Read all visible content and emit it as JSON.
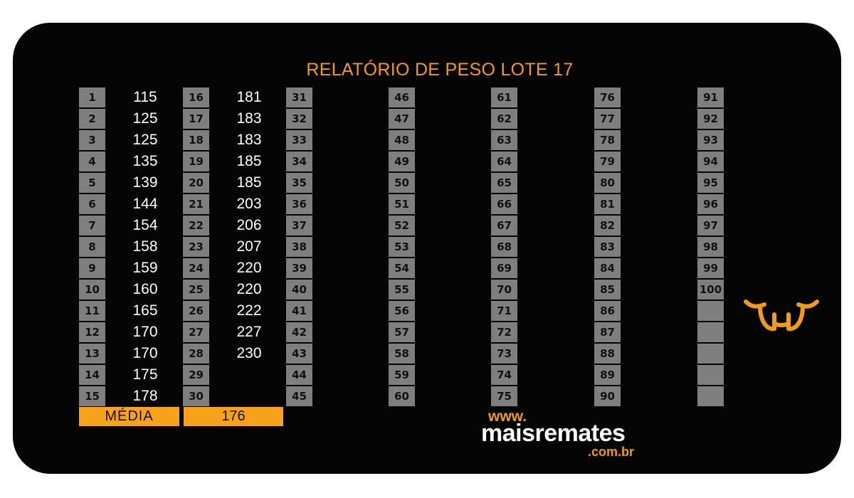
{
  "title": "RELATÓRIO DE PESO LOTE 17",
  "columns": [
    {
      "rows": [
        {
          "n": "1",
          "v": "115"
        },
        {
          "n": "2",
          "v": "125"
        },
        {
          "n": "3",
          "v": "125"
        },
        {
          "n": "4",
          "v": "135"
        },
        {
          "n": "5",
          "v": "139"
        },
        {
          "n": "6",
          "v": "144"
        },
        {
          "n": "7",
          "v": "154"
        },
        {
          "n": "8",
          "v": "158"
        },
        {
          "n": "9",
          "v": "159"
        },
        {
          "n": "10",
          "v": "160"
        },
        {
          "n": "11",
          "v": "165"
        },
        {
          "n": "12",
          "v": "170"
        },
        {
          "n": "13",
          "v": "170"
        },
        {
          "n": "14",
          "v": "175"
        },
        {
          "n": "15",
          "v": "178"
        }
      ]
    },
    {
      "rows": [
        {
          "n": "16",
          "v": "181"
        },
        {
          "n": "17",
          "v": "183"
        },
        {
          "n": "18",
          "v": "183"
        },
        {
          "n": "19",
          "v": "185"
        },
        {
          "n": "20",
          "v": "185"
        },
        {
          "n": "21",
          "v": "203"
        },
        {
          "n": "22",
          "v": "206"
        },
        {
          "n": "23",
          "v": "207"
        },
        {
          "n": "24",
          "v": "220"
        },
        {
          "n": "25",
          "v": "220"
        },
        {
          "n": "26",
          "v": "222"
        },
        {
          "n": "27",
          "v": "227"
        },
        {
          "n": "28",
          "v": "230"
        },
        {
          "n": "29",
          "v": ""
        },
        {
          "n": "30",
          "v": ""
        }
      ]
    },
    {
      "rows": [
        {
          "n": "31",
          "v": ""
        },
        {
          "n": "32",
          "v": ""
        },
        {
          "n": "33",
          "v": ""
        },
        {
          "n": "34",
          "v": ""
        },
        {
          "n": "35",
          "v": ""
        },
        {
          "n": "36",
          "v": ""
        },
        {
          "n": "37",
          "v": ""
        },
        {
          "n": "38",
          "v": ""
        },
        {
          "n": "39",
          "v": ""
        },
        {
          "n": "40",
          "v": ""
        },
        {
          "n": "41",
          "v": ""
        },
        {
          "n": "42",
          "v": ""
        },
        {
          "n": "43",
          "v": ""
        },
        {
          "n": "44",
          "v": ""
        },
        {
          "n": "45",
          "v": ""
        }
      ]
    },
    {
      "rows": [
        {
          "n": "46",
          "v": ""
        },
        {
          "n": "47",
          "v": ""
        },
        {
          "n": "48",
          "v": ""
        },
        {
          "n": "49",
          "v": ""
        },
        {
          "n": "50",
          "v": ""
        },
        {
          "n": "51",
          "v": ""
        },
        {
          "n": "52",
          "v": ""
        },
        {
          "n": "53",
          "v": ""
        },
        {
          "n": "54",
          "v": ""
        },
        {
          "n": "55",
          "v": ""
        },
        {
          "n": "56",
          "v": ""
        },
        {
          "n": "57",
          "v": ""
        },
        {
          "n": "58",
          "v": ""
        },
        {
          "n": "59",
          "v": ""
        },
        {
          "n": "60",
          "v": ""
        }
      ]
    },
    {
      "rows": [
        {
          "n": "61",
          "v": ""
        },
        {
          "n": "62",
          "v": ""
        },
        {
          "n": "63",
          "v": ""
        },
        {
          "n": "64",
          "v": ""
        },
        {
          "n": "65",
          "v": ""
        },
        {
          "n": "66",
          "v": ""
        },
        {
          "n": "67",
          "v": ""
        },
        {
          "n": "68",
          "v": ""
        },
        {
          "n": "69",
          "v": ""
        },
        {
          "n": "70",
          "v": ""
        },
        {
          "n": "71",
          "v": ""
        },
        {
          "n": "72",
          "v": ""
        },
        {
          "n": "73",
          "v": ""
        },
        {
          "n": "74",
          "v": ""
        },
        {
          "n": "75",
          "v": ""
        }
      ]
    },
    {
      "rows": [
        {
          "n": "76",
          "v": ""
        },
        {
          "n": "77",
          "v": ""
        },
        {
          "n": "78",
          "v": ""
        },
        {
          "n": "79",
          "v": ""
        },
        {
          "n": "80",
          "v": ""
        },
        {
          "n": "81",
          "v": ""
        },
        {
          "n": "82",
          "v": ""
        },
        {
          "n": "83",
          "v": ""
        },
        {
          "n": "84",
          "v": ""
        },
        {
          "n": "85",
          "v": ""
        },
        {
          "n": "86",
          "v": ""
        },
        {
          "n": "87",
          "v": ""
        },
        {
          "n": "88",
          "v": ""
        },
        {
          "n": "89",
          "v": ""
        },
        {
          "n": "90",
          "v": ""
        }
      ]
    },
    {
      "rows": [
        {
          "n": "91",
          "v": ""
        },
        {
          "n": "92",
          "v": ""
        },
        {
          "n": "93",
          "v": ""
        },
        {
          "n": "94",
          "v": ""
        },
        {
          "n": "95",
          "v": ""
        },
        {
          "n": "96",
          "v": ""
        },
        {
          "n": "97",
          "v": ""
        },
        {
          "n": "98",
          "v": ""
        },
        {
          "n": "99",
          "v": ""
        },
        {
          "n": "100",
          "v": ""
        },
        {
          "n": "",
          "v": ""
        },
        {
          "n": "",
          "v": ""
        },
        {
          "n": "",
          "v": ""
        },
        {
          "n": "",
          "v": ""
        },
        {
          "n": "",
          "v": ""
        }
      ]
    }
  ],
  "media": {
    "label": "MÉDIA",
    "value": "176"
  },
  "logo": {
    "www": "www.",
    "name": "maisremates",
    "domain": ".com.br",
    "icon": "bull-head-icon"
  },
  "colors": {
    "accent": "#f39a1e",
    "background": "#050505",
    "cell": "#7f7f7f"
  }
}
